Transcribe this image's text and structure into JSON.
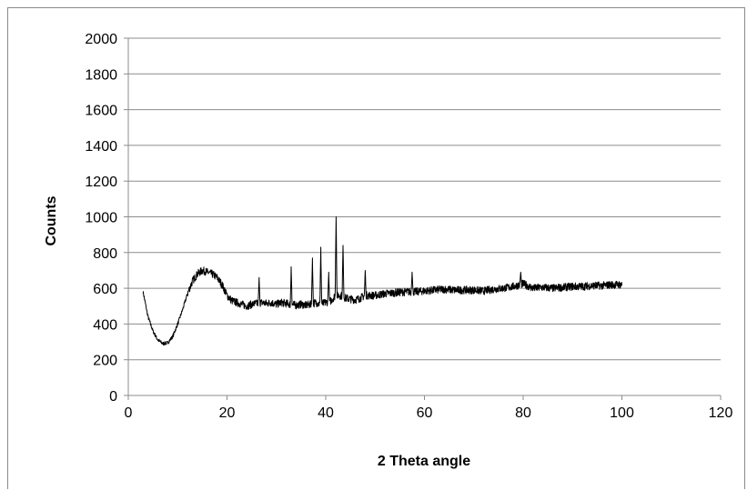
{
  "chart_data": {
    "type": "line",
    "title": "",
    "xlabel": "2 Theta angle",
    "ylabel": "Counts",
    "xlim": [
      0,
      120
    ],
    "ylim": [
      0,
      2000
    ],
    "x_ticks": [
      0,
      20,
      40,
      60,
      80,
      100,
      120
    ],
    "y_ticks": [
      0,
      200,
      400,
      600,
      800,
      1000,
      1200,
      1400,
      1600,
      1800,
      2000
    ],
    "grid": "horizontal",
    "legend": "none",
    "series": [
      {
        "color": "#000000",
        "x": [
          3,
          4,
          5,
          6,
          7,
          8,
          9,
          10,
          11,
          12,
          13,
          14,
          15,
          16,
          17,
          18,
          19,
          20,
          21,
          22,
          23,
          24,
          25,
          26,
          27,
          28,
          29,
          30,
          31,
          32,
          33,
          34,
          35,
          36,
          37,
          38,
          39,
          40,
          41,
          42,
          43,
          44,
          45,
          46,
          47,
          48,
          49,
          50,
          52,
          54,
          56,
          58,
          60,
          62,
          64,
          66,
          68,
          70,
          72,
          74,
          76,
          78,
          80,
          82,
          84,
          86,
          88,
          90,
          92,
          94,
          96,
          98,
          100
        ],
        "y": [
          580,
          440,
          360,
          310,
          290,
          295,
          330,
          400,
          480,
          570,
          640,
          680,
          700,
          690,
          680,
          660,
          620,
          560,
          530,
          520,
          510,
          500,
          510,
          515,
          520,
          515,
          520,
          510,
          520,
          515,
          510,
          505,
          510,
          505,
          510,
          520,
          510,
          520,
          530,
          560,
          560,
          545,
          540,
          535,
          545,
          560,
          560,
          560,
          570,
          575,
          580,
          580,
          585,
          590,
          595,
          590,
          590,
          590,
          585,
          595,
          600,
          610,
          625,
          600,
          605,
          600,
          605,
          610,
          610,
          615,
          615,
          620,
          620
        ]
      }
    ],
    "peaks": [
      {
        "x": 26.5,
        "y": 660
      },
      {
        "x": 33,
        "y": 720
      },
      {
        "x": 37.3,
        "y": 770
      },
      {
        "x": 39,
        "y": 830
      },
      {
        "x": 40.6,
        "y": 690
      },
      {
        "x": 42.1,
        "y": 1000
      },
      {
        "x": 43.5,
        "y": 840
      },
      {
        "x": 48,
        "y": 700
      },
      {
        "x": 57.5,
        "y": 690
      },
      {
        "x": 79.5,
        "y": 690
      }
    ]
  }
}
